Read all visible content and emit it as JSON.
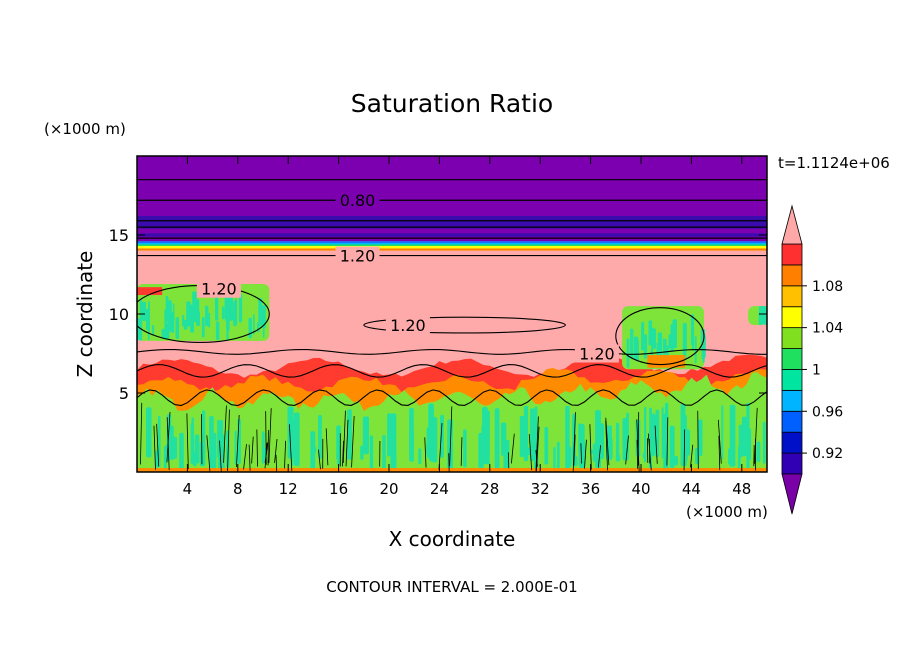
{
  "chart_data": {
    "type": "heatmap",
    "title": "Saturation Ratio",
    "xlabel": "X coordinate",
    "ylabel": "Z coordinate",
    "x_unit": "(×1000 m)",
    "y_unit": "(×1000 m)",
    "time_label": "t=1.1124e+06",
    "footer": "CONTOUR INTERVAL = 2.000E-01",
    "xlim": [
      0,
      50
    ],
    "ylim": [
      0,
      20
    ],
    "x_ticks": [
      4,
      8,
      12,
      16,
      20,
      24,
      28,
      32,
      36,
      40,
      44,
      48
    ],
    "y_ticks": [
      5,
      10,
      15
    ],
    "contour_labels": [
      {
        "text": "0.80",
        "x": 17.5,
        "y": 17.2
      },
      {
        "text": "1.20",
        "x": 17.5,
        "y": 13.7
      },
      {
        "text": "1.20",
        "x": 6.5,
        "y": 11.6
      },
      {
        "text": "1.20",
        "x": 21.5,
        "y": 9.3
      },
      {
        "text": "1.20",
        "x": 36.5,
        "y": 7.5
      }
    ],
    "colorbar": {
      "levels": [
        0.92,
        0.96,
        1,
        1.04,
        1.08
      ],
      "tick_labels": [
        "0.92",
        "0.96",
        "1",
        "1.04",
        "1.08"
      ],
      "colors": [
        "#7a00a8",
        "#3200b4",
        "#0010c8",
        "#0060ff",
        "#00b4ff",
        "#00e6a0",
        "#20e060",
        "#80e020",
        "#ffff00",
        "#ffc000",
        "#ff8000",
        "#ff3030",
        "#ffa8a8"
      ]
    },
    "field_colors": {
      "upper": "#7d00b0",
      "dark_band": "#3a0cae",
      "high": "#ffaaaa",
      "red": "#ff3b30",
      "orange": "#ff8c00",
      "green": "#7fe43a",
      "teal": "#22e0a0",
      "contour": "#000000"
    }
  }
}
